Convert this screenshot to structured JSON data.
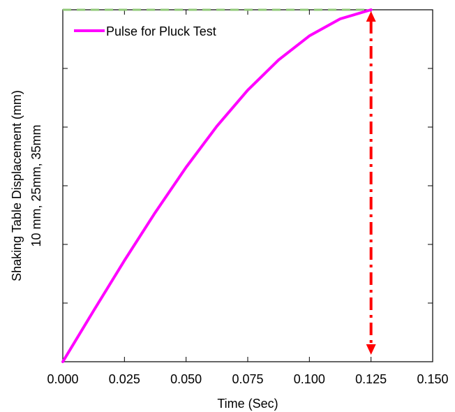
{
  "chart_data": {
    "type": "line",
    "xlabel": "Time (Sec)",
    "ylabel_line1": "Shaking Table Displacement (mm)",
    "ylabel_line2": "10 mm, 25mm, 35mm",
    "xlim": [
      0,
      0.15
    ],
    "ylim": [
      0,
      1.2
    ],
    "x_ticks": [
      "0.000",
      "0.025",
      "0.050",
      "0.075",
      "0.100",
      "0.125",
      "0.150"
    ],
    "y_ticks_labeled": false,
    "legend_position": "top-left",
    "series": [
      {
        "name": "Pulse for Pluck Test",
        "color": "#ff00ff",
        "x": [
          0,
          0.0125,
          0.025,
          0.0375,
          0.05,
          0.0625,
          0.075,
          0.0875,
          0.1,
          0.1125,
          0.125
        ],
        "y": [
          0,
          0.174,
          0.345,
          0.509,
          0.663,
          0.803,
          0.926,
          1.029,
          1.111,
          1.169,
          1.2
        ]
      }
    ],
    "annotations": [
      {
        "kind": "horizontal-dashed-line",
        "color": "#90c978",
        "y": 1.2,
        "x_from": 0,
        "x_to": 0.125
      },
      {
        "kind": "vertical-dash-dot-double-arrow",
        "color": "#ff0000",
        "x": 0.125,
        "y_from": 0.0,
        "y_to": 1.2
      }
    ]
  }
}
